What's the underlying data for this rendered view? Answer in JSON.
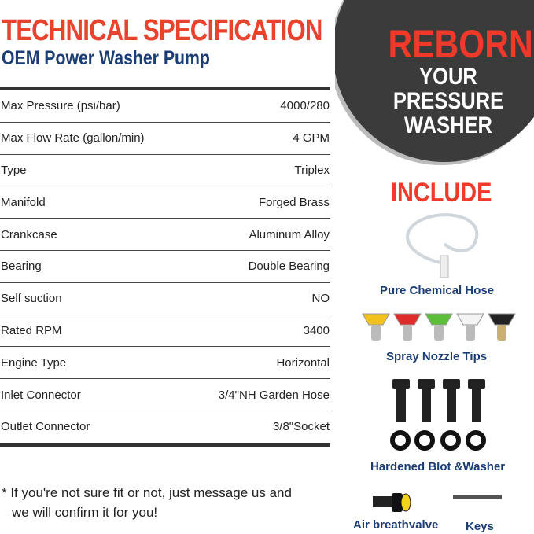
{
  "header": {
    "title": "TECHNICAL SPECIFICATION",
    "subtitle": "OEM Power Washer Pump"
  },
  "specs": [
    {
      "label": "Max Pressure (psi/bar)",
      "value": "4000/280"
    },
    {
      "label": "Max Flow Rate (gallon/min)",
      "value": "4 GPM"
    },
    {
      "label": "Type",
      "value": "Triplex"
    },
    {
      "label": "Manifold",
      "value": "Forged Brass"
    },
    {
      "label": "Crankcase",
      "value": "Aluminum Alloy"
    },
    {
      "label": "Bearing",
      "value": "Double Bearing"
    },
    {
      "label": "Self suction",
      "value": "NO"
    },
    {
      "label": "Rated RPM",
      "value": "3400"
    },
    {
      "label": "Engine Type",
      "value": "Horizontal"
    },
    {
      "label": "Inlet Connector",
      "value": "3/4\"NH Garden Hose"
    },
    {
      "label": "Outlet Connector",
      "value": "3/8\"Socket"
    }
  ],
  "note": {
    "line1": "*  If you're not sure fit or not, just message us and",
    "line2": "we will confirm it for you!"
  },
  "badge": {
    "line1": "REBORN",
    "line2": "YOUR",
    "line3": "PRESSURE",
    "line4": "WASHER"
  },
  "include": {
    "title": "INCLUDE",
    "items": [
      "Pure Chemical Hose",
      "Spray Nozzle Tips",
      "Hardened Blot &Washer",
      "Air breathvalve",
      "Keys"
    ]
  },
  "nozzle_colors": [
    "#f2c11b",
    "#e02b2b",
    "#5bbf3a",
    "#f4f4f4",
    "#222222"
  ]
}
